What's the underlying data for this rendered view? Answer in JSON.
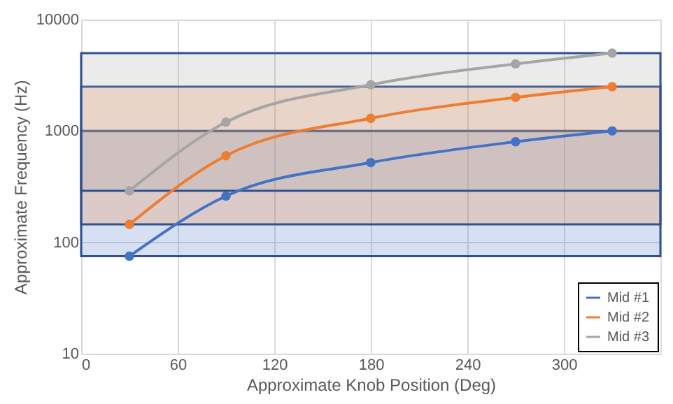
{
  "chart_data": {
    "type": "line",
    "xlabel": "Approximate Knob Position (Deg)",
    "ylabel": "Approximate Frequency (Hz)",
    "x": [
      30,
      90,
      180,
      270,
      330
    ],
    "series": [
      {
        "name": "Mid #1",
        "color": "#4472c4",
        "values": [
          75,
          260,
          520,
          800,
          1000
        ]
      },
      {
        "name": "Mid #2",
        "color": "#ed7d31",
        "values": [
          145,
          600,
          1300,
          2000,
          2500
        ]
      },
      {
        "name": "Mid #3",
        "color": "#a5a5a5",
        "values": [
          290,
          1200,
          2600,
          4000,
          5000
        ]
      }
    ],
    "bands": [
      {
        "axis": "y",
        "from": 75,
        "to": 1000,
        "color": "#4472c4"
      },
      {
        "axis": "y",
        "from": 145,
        "to": 2500,
        "color": "#ed7d31"
      },
      {
        "axis": "y",
        "from": 290,
        "to": 5000,
        "color": "#a5a5a5"
      }
    ],
    "xlim": [
      0,
      360
    ],
    "xticks": [
      0,
      60,
      120,
      180,
      240,
      300
    ],
    "ylim": [
      10,
      10000
    ],
    "yticks": [
      10,
      100,
      1000,
      10000
    ],
    "log": "y",
    "grid": true,
    "legend": "bottom right",
    "marker": "circle",
    "line_style": "solid"
  }
}
